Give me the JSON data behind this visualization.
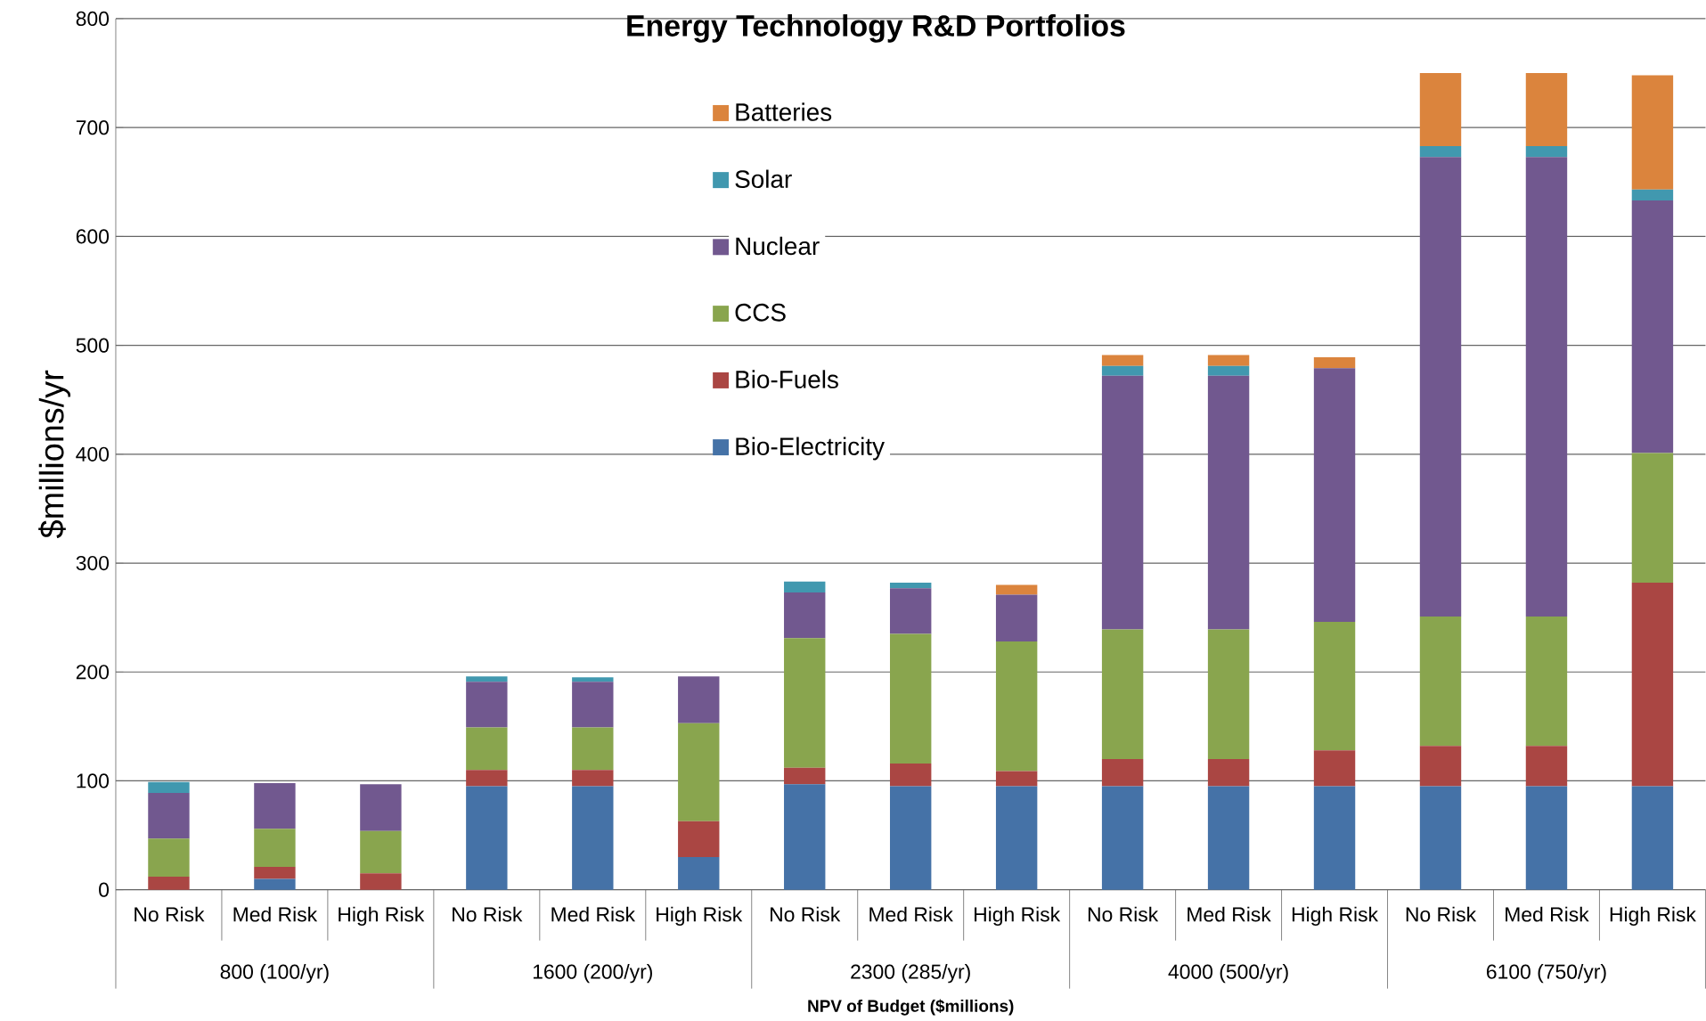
{
  "chart_data": {
    "type": "bar",
    "title": "Energy Technology R&D Portfolios",
    "xlabel": "NPV of Budget ($millions)",
    "ylabel": "$millions/yr",
    "categories": [
      "No Risk",
      "Med Risk",
      "High Risk",
      "No Risk",
      "Med Risk",
      "High Risk",
      "No Risk",
      "Med Risk",
      "High Risk",
      "No Risk",
      "Med Risk",
      "High Risk",
      "No Risk",
      "Med Risk",
      "High Risk"
    ],
    "annotations": [
      "800 (100/yr)",
      "1600 (200/yr)",
      "2300 (285/yr)",
      "4000 (500/yr)",
      "6100 (750/yr)"
    ],
    "stacked": true,
    "ylim": [
      0,
      800
    ],
    "yticks": [
      0,
      100,
      200,
      300,
      400,
      500,
      600,
      700,
      800
    ],
    "grid": "y",
    "legend": "top",
    "series": [
      {
        "name": "Bio-Electricity",
        "color": "#4572a7",
        "values": [
          0,
          10,
          0,
          95,
          95,
          30,
          97,
          95,
          95,
          95,
          95,
          95,
          95,
          95,
          95
        ]
      },
      {
        "name": "Bio-Fuels",
        "color": "#aa4643",
        "values": [
          12,
          11,
          15,
          15,
          15,
          33,
          15,
          21,
          14,
          25,
          25,
          33,
          37,
          37,
          187
        ]
      },
      {
        "name": "CCS",
        "color": "#89a54e",
        "values": [
          35,
          35,
          39,
          39,
          39,
          90,
          119,
          119,
          119,
          119,
          119,
          118,
          119,
          119,
          119
        ]
      },
      {
        "name": "Nuclear",
        "color": "#71588f",
        "values": [
          42,
          42,
          43,
          42,
          42,
          43,
          42,
          42,
          43,
          233,
          233,
          233,
          422,
          422,
          232
        ]
      },
      {
        "name": "Solar",
        "color": "#4198af",
        "values": [
          10,
          0,
          0,
          5,
          4,
          0,
          10,
          5,
          0,
          9,
          9,
          0,
          10,
          10,
          10
        ]
      },
      {
        "name": "Batteries",
        "color": "#db843d",
        "values": [
          0,
          0,
          0,
          0,
          0,
          0,
          0,
          0,
          9,
          10,
          10,
          10,
          67,
          67,
          105
        ]
      }
    ]
  }
}
